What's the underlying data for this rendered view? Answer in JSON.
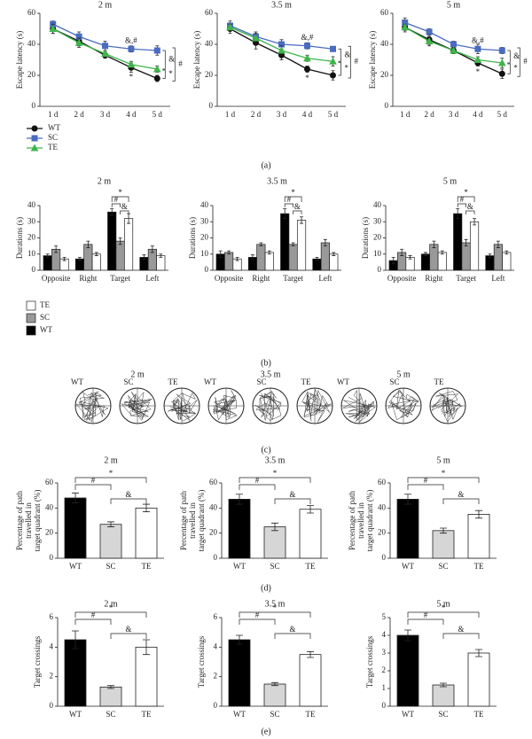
{
  "chart_data": [
    {
      "type": "line",
      "title": "2 m",
      "y_label": "Escape latency (s)",
      "categories": [
        "1 d",
        "2 d",
        "3 d",
        "4 d",
        "5 d"
      ],
      "series": [
        {
          "name": "WT",
          "color": "#111111",
          "marker": "circle",
          "values": [
            50,
            42,
            33,
            25,
            18
          ],
          "errors": [
            3,
            3,
            2,
            3,
            2
          ]
        },
        {
          "name": "SC",
          "color": "#4a6cc0",
          "marker": "square",
          "values": [
            53,
            45,
            39,
            37,
            36
          ],
          "errors": [
            2,
            3,
            3,
            2,
            3
          ]
        },
        {
          "name": "TE",
          "color": "#3fb54a",
          "marker": "triangle",
          "values": [
            50,
            41,
            34,
            27,
            24
          ],
          "errors": [
            3,
            3,
            2,
            2,
            2
          ]
        }
      ],
      "ylim": [
        0,
        60
      ],
      "yticks": [
        0,
        20,
        40,
        60
      ],
      "legend": "below-left",
      "annotations": [
        "&,#",
        "*",
        "&",
        "*",
        "#"
      ]
    },
    {
      "type": "line",
      "title": "3.5 m",
      "y_label": "Escape latency (s)",
      "categories": [
        "1 d",
        "2 d",
        "3 d",
        "4 d",
        "5 d"
      ],
      "series": [
        {
          "name": "WT",
          "color": "#111111",
          "marker": "circle",
          "values": [
            50,
            41,
            33,
            24,
            20
          ],
          "errors": [
            3,
            4,
            3,
            2,
            3
          ]
        },
        {
          "name": "SC",
          "color": "#4a6cc0",
          "marker": "square",
          "values": [
            52,
            45,
            40,
            39,
            37
          ],
          "errors": [
            3,
            3,
            3,
            2,
            1
          ]
        },
        {
          "name": "TE",
          "color": "#3fb54a",
          "marker": "triangle",
          "values": [
            51,
            44,
            36,
            31,
            29
          ],
          "errors": [
            2,
            3,
            3,
            2,
            3
          ]
        }
      ],
      "ylim": [
        0,
        60
      ],
      "yticks": [
        0,
        20,
        40,
        60
      ],
      "annotations": [
        "&,#",
        "*",
        "&",
        "*",
        "#"
      ]
    },
    {
      "type": "line",
      "title": "5 m",
      "y_label": "Escape latency (s)",
      "categories": [
        "1 d",
        "2 d",
        "3 d",
        "4 d",
        "5 d"
      ],
      "series": [
        {
          "name": "WT",
          "color": "#111111",
          "marker": "circle",
          "values": [
            51,
            43,
            36,
            28,
            21
          ],
          "errors": [
            3,
            3,
            2,
            2,
            3
          ]
        },
        {
          "name": "SC",
          "color": "#4a6cc0",
          "marker": "square",
          "values": [
            54,
            48,
            40,
            37,
            36
          ],
          "errors": [
            3,
            2,
            2,
            3,
            2
          ]
        },
        {
          "name": "TE",
          "color": "#3fb54a",
          "marker": "triangle",
          "values": [
            51,
            42,
            36,
            30,
            28
          ],
          "errors": [
            2,
            3,
            2,
            2,
            3
          ]
        }
      ],
      "ylim": [
        0,
        60
      ],
      "yticks": [
        0,
        20,
        40,
        60
      ],
      "annotations": [
        "&,#",
        "*",
        "&",
        "*",
        "#"
      ]
    },
    {
      "type": "bar",
      "title": "2 m",
      "y_label": "Durations (s)",
      "categories": [
        "Opposite",
        "Right",
        "Target",
        "Left"
      ],
      "series": [
        {
          "name": "WT",
          "color": "#000000",
          "values": [
            9,
            7,
            36,
            8
          ],
          "errors": [
            1,
            1,
            2,
            1.5
          ]
        },
        {
          "name": "SC",
          "color": "#999999",
          "values": [
            13,
            16,
            18,
            13
          ],
          "errors": [
            2,
            2,
            2,
            2
          ]
        },
        {
          "name": "TE",
          "color": "#ffffff",
          "values": [
            7,
            10,
            32,
            9
          ],
          "errors": [
            1,
            1,
            3,
            1
          ]
        }
      ],
      "ylim": [
        0,
        40
      ],
      "yticks": [
        0,
        10,
        20,
        30,
        40
      ],
      "legend": "below-left",
      "annotations": [
        "*",
        "#",
        "&"
      ]
    },
    {
      "type": "bar",
      "title": "3.5 m",
      "y_label": "Durations (s)",
      "categories": [
        "Opposite",
        "Right",
        "Target",
        "Left"
      ],
      "series": [
        {
          "name": "WT",
          "color": "#000000",
          "values": [
            10,
            8,
            35,
            7
          ],
          "errors": [
            2,
            1.5,
            3,
            1
          ]
        },
        {
          "name": "SC",
          "color": "#999999",
          "values": [
            11,
            16,
            16,
            17
          ],
          "errors": [
            1,
            1,
            1,
            2
          ]
        },
        {
          "name": "TE",
          "color": "#ffffff",
          "values": [
            7,
            11,
            31,
            10
          ],
          "errors": [
            1,
            1,
            2,
            1
          ]
        }
      ],
      "ylim": [
        0,
        40
      ],
      "yticks": [
        0,
        10,
        20,
        30,
        40
      ],
      "annotations": [
        "*",
        "#",
        "&"
      ]
    },
    {
      "type": "bar",
      "title": "5 m",
      "y_label": "Durations (s)",
      "categories": [
        "Opposite",
        "Right",
        "Target",
        "Left"
      ],
      "series": [
        {
          "name": "WT",
          "color": "#000000",
          "values": [
            6,
            10,
            35,
            9
          ],
          "errors": [
            2,
            1,
            3,
            1
          ]
        },
        {
          "name": "SC",
          "color": "#999999",
          "values": [
            11,
            16,
            17,
            16
          ],
          "errors": [
            2,
            2,
            2,
            2
          ]
        },
        {
          "name": "TE",
          "color": "#ffffff",
          "values": [
            8,
            11,
            30,
            11
          ],
          "errors": [
            1,
            1,
            2,
            1
          ]
        }
      ],
      "ylim": [
        0,
        40
      ],
      "yticks": [
        0,
        10,
        20,
        30,
        40
      ],
      "annotations": [
        "*",
        "#",
        "&"
      ]
    },
    {
      "type": "bar",
      "title": "2 m",
      "y_label": [
        "Percentage of path",
        "travelled in",
        "target quadrant (%)"
      ],
      "categories": [
        "WT",
        "SC",
        "TE"
      ],
      "values": [
        48,
        27,
        40
      ],
      "errors": [
        4,
        2,
        3
      ],
      "colors": [
        "#000000",
        "#d6d6d6",
        "#ffffff"
      ],
      "ylim": [
        0,
        60
      ],
      "yticks": [
        0,
        20,
        40,
        60
      ],
      "annotations": [
        "#",
        "*",
        "&"
      ]
    },
    {
      "type": "bar",
      "title": "3.5 m",
      "y_label": [
        "Percentage of path",
        "travelled in",
        "target quadrant (%)"
      ],
      "categories": [
        "WT",
        "SC",
        "TE"
      ],
      "values": [
        47,
        25,
        39
      ],
      "errors": [
        4,
        3,
        3
      ],
      "colors": [
        "#000000",
        "#d6d6d6",
        "#ffffff"
      ],
      "ylim": [
        0,
        60
      ],
      "yticks": [
        0,
        20,
        40,
        60
      ],
      "annotations": [
        "#",
        "*",
        "&"
      ]
    },
    {
      "type": "bar",
      "title": "5 m",
      "y_label": [
        "Percentage of path",
        "travelled in",
        "target quadrant (%)"
      ],
      "categories": [
        "WT",
        "SC",
        "TE"
      ],
      "values": [
        47,
        22,
        35
      ],
      "errors": [
        4,
        2,
        3
      ],
      "colors": [
        "#000000",
        "#d6d6d6",
        "#ffffff"
      ],
      "ylim": [
        0,
        60
      ],
      "yticks": [
        0,
        20,
        40,
        60
      ],
      "annotations": [
        "#",
        "*",
        "&"
      ]
    },
    {
      "type": "bar",
      "title": "2 m",
      "y_label": "Target crossings",
      "categories": [
        "WT",
        "SC",
        "TE"
      ],
      "values": [
        4.5,
        1.3,
        4
      ],
      "errors": [
        0.6,
        0.1,
        0.5
      ],
      "colors": [
        "#000000",
        "#d6d6d6",
        "#ffffff"
      ],
      "ylim": [
        0,
        6
      ],
      "yticks": [
        0,
        2,
        4,
        6
      ],
      "annotations": [
        "#",
        "*",
        "&"
      ]
    },
    {
      "type": "bar",
      "title": "3.5 m",
      "y_label": "Target crossings",
      "categories": [
        "WT",
        "SC",
        "TE"
      ],
      "values": [
        4.5,
        1.5,
        3.5
      ],
      "errors": [
        0.3,
        0.1,
        0.2
      ],
      "colors": [
        "#000000",
        "#d6d6d6",
        "#ffffff"
      ],
      "ylim": [
        0,
        6
      ],
      "yticks": [
        0,
        2,
        4,
        6
      ],
      "annotations": [
        "#",
        "*",
        "&"
      ]
    },
    {
      "type": "bar",
      "title": "5 m",
      "y_label": "Target crossings",
      "categories": [
        "WT",
        "SC",
        "TE"
      ],
      "values": [
        4,
        1.2,
        3
      ],
      "errors": [
        0.3,
        0.1,
        0.2
      ],
      "colors": [
        "#000000",
        "#d6d6d6",
        "#ffffff"
      ],
      "ylim": [
        0,
        5
      ],
      "yticks": [
        0,
        1,
        2,
        3,
        4,
        5
      ],
      "annotations": [
        "#",
        "*",
        "&"
      ]
    }
  ],
  "swim_paths": [
    {
      "title": "2 m",
      "labels": [
        "WT",
        "SC",
        "TE"
      ]
    },
    {
      "title": "3.5 m",
      "labels": [
        "WT",
        "SC",
        "TE"
      ]
    },
    {
      "title": "5 m",
      "labels": [
        "WT",
        "SC",
        "TE"
      ]
    }
  ],
  "panel_labels": [
    "(a)",
    "(b)",
    "(c)",
    "(d)",
    "(e)"
  ]
}
